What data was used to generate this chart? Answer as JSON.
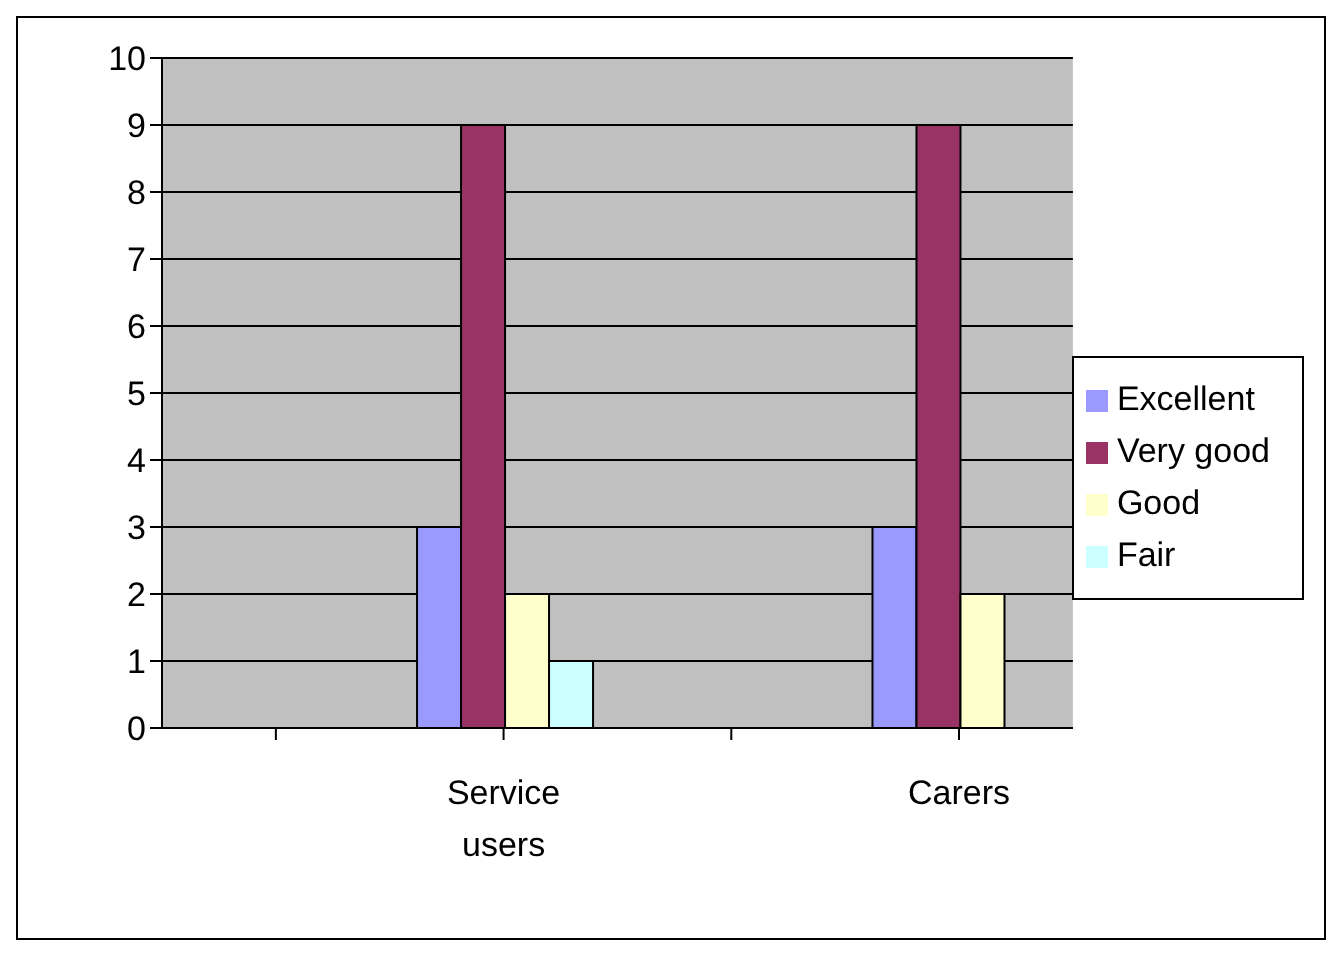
{
  "chart_data": {
    "type": "bar",
    "categories": [
      null,
      "Service users",
      null,
      "Carers"
    ],
    "series": [
      {
        "name": "Excellent",
        "color": "#9999ff",
        "values": [
          null,
          3,
          null,
          3
        ]
      },
      {
        "name": "Very good",
        "color": "#993366",
        "values": [
          null,
          9,
          null,
          9
        ]
      },
      {
        "name": "Good",
        "color": "#ffffcc",
        "values": [
          null,
          2,
          null,
          2
        ]
      },
      {
        "name": "Fair",
        "color": "#ccffff",
        "values": [
          null,
          1,
          null,
          0
        ]
      }
    ],
    "ylim": [
      0,
      10
    ],
    "yticks": [
      0,
      1,
      2,
      3,
      4,
      5,
      6,
      7,
      8,
      9,
      10
    ],
    "grid": "y",
    "legend": "right"
  }
}
